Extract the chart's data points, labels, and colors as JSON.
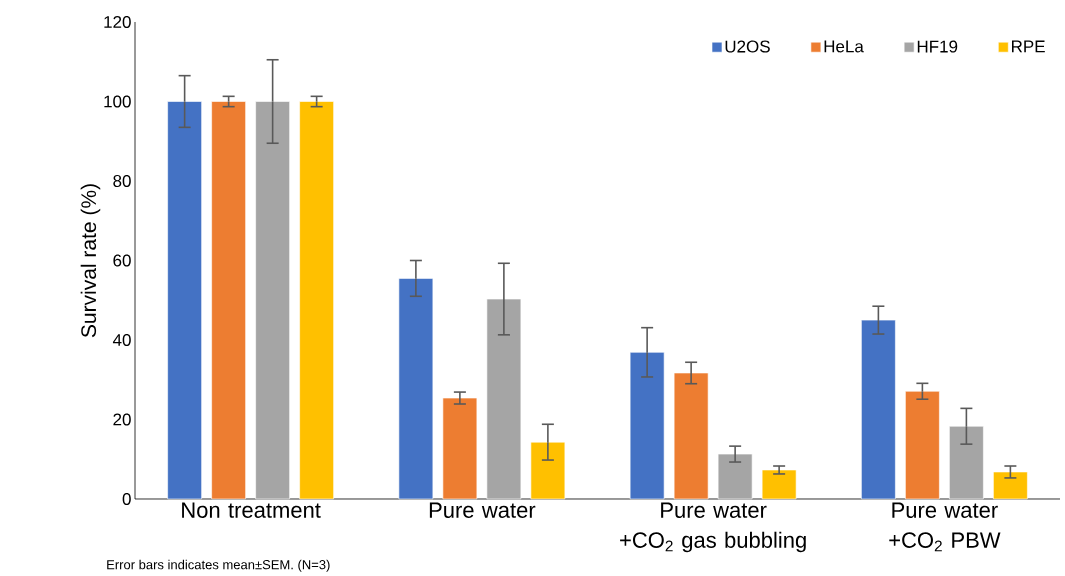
{
  "chart_data": {
    "type": "bar",
    "ylabel": "Survival rate (%)",
    "categories": [
      "Non treatment",
      "Pure water",
      "Pure water\n+CO$_{2}$ gas bubbling",
      "Pure water\n+CO$_{2}$ PBW"
    ],
    "series": [
      {
        "name": "U2OS",
        "color": "#4472c4",
        "values": [
          100,
          55.5,
          36.9,
          45
        ],
        "errors": [
          6.5,
          4.5,
          6.2,
          3.5
        ]
      },
      {
        "name": "HeLa",
        "color": "#ed7d31",
        "values": [
          100,
          25.4,
          31.7,
          27.1
        ],
        "errors": [
          1.3,
          1.5,
          2.7,
          2
        ]
      },
      {
        "name": "HF19",
        "color": "#a5a5a5",
        "values": [
          100,
          50.3,
          11.3,
          18.3
        ],
        "errors": [
          10.5,
          9,
          2,
          4.5
        ]
      },
      {
        "name": "RPE",
        "color": "#ffc000",
        "values": [
          100,
          14.3,
          7.3,
          6.8
        ],
        "errors": [
          1.3,
          4.5,
          1,
          1.5
        ]
      }
    ],
    "ylim": [
      0,
      120
    ],
    "yticks": [
      0,
      20,
      40,
      60,
      80,
      100,
      120
    ],
    "grid": false,
    "legend": "top right",
    "annotations": [
      "Error bars indicates mean±SEM. (N=3)"
    ]
  }
}
